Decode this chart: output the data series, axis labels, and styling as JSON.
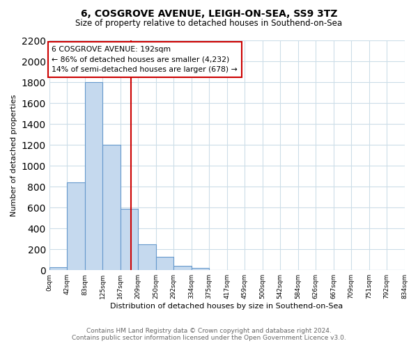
{
  "title": "6, COSGROVE AVENUE, LEIGH-ON-SEA, SS9 3TZ",
  "subtitle": "Size of property relative to detached houses in Southend-on-Sea",
  "xlabel": "Distribution of detached houses by size in Southend-on-Sea",
  "ylabel": "Number of detached properties",
  "bar_heights": [
    25,
    840,
    1800,
    1200,
    590,
    250,
    125,
    40,
    20,
    0,
    0,
    0,
    0,
    0,
    0,
    0,
    0,
    0,
    0,
    0
  ],
  "n_bins": 20,
  "bar_color": "#c5d9ee",
  "bar_edge_color": "#6699cc",
  "vline_color": "#cc0000",
  "vline_bin": 4.6,
  "annotation_title": "6 COSGROVE AVENUE: 192sqm",
  "annotation_line1": "← 86% of detached houses are smaller (4,232)",
  "annotation_line2": "14% of semi-detached houses are larger (678) →",
  "annotation_box_color": "#ffffff",
  "annotation_box_edge": "#cc0000",
  "ylim": [
    0,
    2200
  ],
  "yticks": [
    0,
    200,
    400,
    600,
    800,
    1000,
    1200,
    1400,
    1600,
    1800,
    2000,
    2200
  ],
  "tick_labels": [
    "0sqm",
    "42sqm",
    "83sqm",
    "125sqm",
    "167sqm",
    "209sqm",
    "250sqm",
    "292sqm",
    "334sqm",
    "375sqm",
    "417sqm",
    "459sqm",
    "500sqm",
    "542sqm",
    "584sqm",
    "626sqm",
    "667sqm",
    "709sqm",
    "751sqm",
    "792sqm",
    "834sqm"
  ],
  "footer1": "Contains HM Land Registry data © Crown copyright and database right 2024.",
  "footer2": "Contains public sector information licensed under the Open Government Licence v3.0.",
  "bg_color": "#ffffff",
  "grid_color": "#ccdde8"
}
